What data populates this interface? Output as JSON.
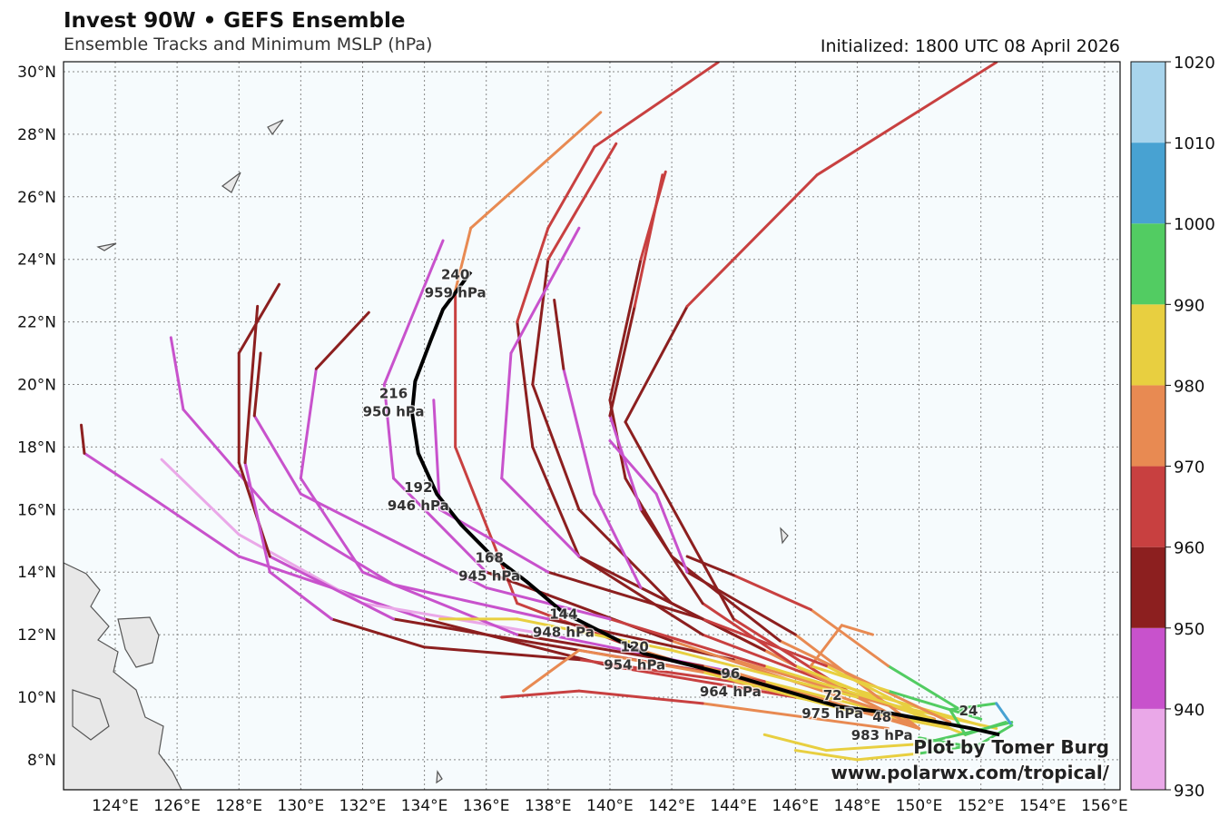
{
  "header": {
    "title": "Invest 90W • GEFS Ensemble",
    "subtitle": "Ensemble Tracks and Minimum MSLP (hPa)",
    "initialized": "Initialized: 1800 UTC 08 April 2026"
  },
  "credit": {
    "line1": "Plot by Tomer Burg",
    "line2": "www.polarwx.com/tropical/"
  },
  "chart_data": {
    "type": "map-tracks",
    "lon_range": [
      122.3,
      156.5
    ],
    "lat_range": [
      7.0,
      30.3
    ],
    "lat_ticks": [
      "8°N",
      "10°N",
      "12°N",
      "14°N",
      "16°N",
      "18°N",
      "20°N",
      "22°N",
      "24°N",
      "26°N",
      "28°N",
      "30°N"
    ],
    "lat_values": [
      8,
      10,
      12,
      14,
      16,
      18,
      20,
      22,
      24,
      26,
      28,
      30
    ],
    "lon_ticks": [
      "124°E",
      "126°E",
      "128°E",
      "130°E",
      "132°E",
      "134°E",
      "136°E",
      "138°E",
      "140°E",
      "142°E",
      "144°E",
      "146°E",
      "148°E",
      "150°E",
      "152°E",
      "154°E",
      "156°E"
    ],
    "lon_values": [
      124,
      126,
      128,
      130,
      132,
      134,
      136,
      138,
      140,
      142,
      144,
      146,
      148,
      150,
      152,
      154,
      156
    ],
    "grid": true,
    "colorbar": {
      "levels": [
        "930",
        "940",
        "950",
        "960",
        "970",
        "980",
        "990",
        "1000",
        "1010",
        "1020"
      ],
      "colors": [
        "#eaa8e8",
        "#c852cc",
        "#8c1f1f",
        "#c84040",
        "#e88a52",
        "#e8cf40",
        "#52cc62",
        "#48a2d2",
        "#a8d4ec"
      ]
    },
    "mean_track": {
      "path": [
        [
          152.6,
          8.8
        ],
        [
          151.7,
          9.0
        ],
        [
          149.0,
          9.5
        ],
        [
          147.4,
          9.7
        ],
        [
          144.3,
          10.6
        ],
        [
          141.1,
          11.4
        ],
        [
          138.5,
          12.7
        ],
        [
          137.3,
          13.7
        ],
        [
          136.1,
          14.6
        ],
        [
          135.2,
          15.5
        ],
        [
          134.4,
          16.5
        ],
        [
          133.8,
          17.8
        ],
        [
          133.6,
          19.1
        ],
        [
          133.7,
          20.1
        ],
        [
          134.2,
          21.4
        ],
        [
          134.6,
          22.4
        ],
        [
          135.5,
          23.6
        ]
      ],
      "labels": [
        {
          "hour": "24",
          "pressure": "",
          "lon": 151.6,
          "lat": 9.3
        },
        {
          "hour": "48",
          "pressure": "983 hPa",
          "lon": 148.8,
          "lat": 9.1
        },
        {
          "hour": "72",
          "pressure": "975 hPa",
          "lon": 147.2,
          "lat": 9.8
        },
        {
          "hour": "96",
          "pressure": "964 hPa",
          "lon": 143.9,
          "lat": 10.5
        },
        {
          "hour": "120",
          "pressure": "954 hPa",
          "lon": 140.8,
          "lat": 11.35
        },
        {
          "hour": "144",
          "pressure": "948 hPa",
          "lon": 138.5,
          "lat": 12.4
        },
        {
          "hour": "168",
          "pressure": "945 hPa",
          "lon": 136.1,
          "lat": 14.2
        },
        {
          "hour": "192",
          "pressure": "946 hPa",
          "lon": 133.8,
          "lat": 16.45
        },
        {
          "hour": "216",
          "pressure": "950 hPa",
          "lon": 133.0,
          "lat": 19.45
        },
        {
          "hour": "240",
          "pressure": "959 hPa",
          "lon": 135.0,
          "lat": 23.25
        }
      ]
    },
    "members": [
      [
        [
          152.5,
          9.0,
          1000
        ],
        [
          148,
          10,
          975
        ],
        [
          144,
          12.5,
          958
        ],
        [
          140.5,
          18.8,
          955
        ],
        [
          142.5,
          22.5,
          962
        ],
        [
          146.7,
          26.7,
          965
        ],
        [
          152.5,
          30.3,
          965
        ]
      ],
      [
        [
          152,
          9.1,
          1000
        ],
        [
          147,
          10.5,
          975
        ],
        [
          143,
          12,
          958
        ],
        [
          139,
          14.5,
          955
        ],
        [
          137.5,
          18,
          957
        ],
        [
          137,
          22,
          960
        ],
        [
          138,
          25,
          963
        ],
        [
          139.5,
          27.6,
          965
        ],
        [
          143.5,
          30.3,
          965
        ]
      ],
      [
        [
          151,
          9.0,
          990
        ],
        [
          146,
          10,
          975
        ],
        [
          141,
          11.5,
          965
        ],
        [
          137,
          13,
          960
        ],
        [
          135,
          18,
          962
        ],
        [
          135,
          23,
          968
        ],
        [
          135.5,
          25,
          972
        ],
        [
          139.7,
          28.7,
          975
        ]
      ],
      [
        [
          151.5,
          8.8,
          995
        ],
        [
          146,
          11,
          968
        ],
        [
          142,
          13,
          955
        ],
        [
          139,
          16,
          950
        ],
        [
          137.5,
          20,
          955
        ],
        [
          138,
          24,
          962
        ],
        [
          140.2,
          27.7,
          965
        ]
      ],
      [
        [
          151,
          9.2,
          995
        ],
        [
          145.5,
          11.8,
          962
        ],
        [
          142,
          14.5,
          952
        ],
        [
          140.5,
          17,
          948
        ],
        [
          140,
          19.5,
          955
        ],
        [
          141,
          24,
          962
        ],
        [
          141.8,
          26.8,
          965
        ]
      ],
      [
        [
          151,
          9,
          1000
        ],
        [
          146,
          10,
          975
        ],
        [
          140,
          11,
          955
        ],
        [
          134,
          12.5,
          945
        ],
        [
          128,
          14.5,
          942
        ],
        [
          125,
          16.5,
          945
        ],
        [
          123,
          17.8,
          952
        ],
        [
          122.9,
          18.7,
          962
        ]
      ],
      [
        [
          150,
          9,
          995
        ],
        [
          144,
          10.8,
          962
        ],
        [
          138,
          12,
          936
        ],
        [
          132,
          13,
          934
        ],
        [
          128,
          15.2,
          936
        ],
        [
          125.5,
          17.6,
          938
        ]
      ],
      [
        [
          150.5,
          9.3,
          995
        ],
        [
          144,
          11.2,
          962
        ],
        [
          138,
          12.5,
          948
        ],
        [
          133,
          13.6,
          944
        ],
        [
          129,
          16,
          942
        ],
        [
          126.2,
          19.2,
          942
        ],
        [
          125.8,
          21.5,
          942
        ]
      ],
      [
        [
          151,
          9,
          1000
        ],
        [
          145,
          10.5,
          970
        ],
        [
          139,
          11.5,
          955
        ],
        [
          133,
          12.5,
          948
        ],
        [
          129,
          14.5,
          945
        ],
        [
          128,
          17.5,
          955
        ],
        [
          128,
          21,
          955
        ],
        [
          129.3,
          23.2,
          958
        ]
      ],
      [
        [
          150,
          9,
          995
        ],
        [
          143,
          11,
          962
        ],
        [
          137,
          12,
          950
        ],
        [
          132,
          14,
          946
        ],
        [
          130,
          17,
          945
        ],
        [
          130.5,
          20.5,
          952
        ],
        [
          132.2,
          22.3,
          958
        ]
      ],
      [
        [
          149,
          9.5,
          990
        ],
        [
          142,
          11.8,
          955
        ],
        [
          136,
          14,
          946
        ],
        [
          133,
          17,
          944
        ],
        [
          132.7,
          20,
          944
        ],
        [
          134.6,
          24.6,
          955
        ]
      ],
      [
        [
          150,
          9,
          995
        ],
        [
          144,
          12,
          958
        ],
        [
          139,
          14.5,
          948
        ],
        [
          136.5,
          17,
          945
        ],
        [
          136.8,
          21,
          945
        ],
        [
          139,
          25,
          945
        ]
      ],
      [
        [
          150,
          9,
          995
        ],
        [
          145,
          11.5,
          960
        ],
        [
          141,
          13.5,
          950
        ],
        [
          139.5,
          16.5,
          945
        ],
        [
          138.5,
          20.5,
          948
        ],
        [
          138.2,
          22.7,
          958
        ]
      ],
      [
        [
          151,
          9,
          998
        ],
        [
          146,
          11,
          970
        ],
        [
          143,
          13,
          955
        ],
        [
          141,
          16,
          950
        ],
        [
          140,
          19,
          945
        ],
        [
          140.8,
          22.5,
          958
        ],
        [
          141.7,
          26.7,
          965
        ]
      ],
      [
        [
          150,
          9,
          995
        ],
        [
          146,
          12,
          962
        ],
        [
          142.5,
          14,
          950
        ],
        [
          141.5,
          16.5,
          942
        ],
        [
          140,
          18.2,
          942
        ]
      ],
      [
        [
          150,
          9.5,
          992
        ],
        [
          145,
          11,
          968
        ],
        [
          140,
          12.5,
          952
        ],
        [
          136,
          13.5,
          944
        ],
        [
          133,
          15,
          944
        ],
        [
          130,
          16.5,
          944
        ],
        [
          128.5,
          19,
          948
        ],
        [
          128.7,
          21,
          955
        ]
      ],
      [
        [
          149.5,
          9.2,
          990
        ],
        [
          144,
          10.5,
          965
        ],
        [
          139,
          11.2,
          958
        ],
        [
          134,
          11.6,
          955
        ],
        [
          131,
          12.5,
          950
        ],
        [
          129,
          14,
          948
        ],
        [
          128.2,
          17.5,
          950
        ],
        [
          128.6,
          22.5,
          956
        ]
      ],
      [
        [
          149,
          9.0,
          988
        ],
        [
          143,
          9.8,
          970
        ],
        [
          139,
          10.2,
          962
        ],
        [
          136.5,
          10.0,
          962
        ]
      ],
      [
        [
          148,
          9.5,
          985
        ],
        [
          143,
          10.8,
          975
        ],
        [
          139,
          11.5,
          970
        ],
        [
          137.2,
          10.2,
          970
        ]
      ],
      [
        [
          148,
          10,
          985
        ],
        [
          142,
          11.5,
          982
        ],
        [
          137,
          12.5,
          982
        ],
        [
          134.5,
          12.5,
          982
        ]
      ],
      [
        [
          153,
          9.2,
          1000
        ],
        [
          150,
          8.5,
          990
        ],
        [
          147,
          8.3,
          985
        ],
        [
          145,
          8.8,
          982
        ]
      ],
      [
        [
          152,
          9.3,
          995
        ],
        [
          149,
          10.2,
          985
        ],
        [
          146.5,
          11,
          975
        ],
        [
          147.5,
          12.3,
          970
        ],
        [
          148.5,
          12,
          970
        ]
      ],
      [
        [
          152,
          8.5,
          995
        ],
        [
          150,
          8.2,
          990
        ],
        [
          148,
          8.0,
          985
        ],
        [
          146,
          8.3,
          982
        ]
      ],
      [
        [
          151.5,
          9.5,
          995
        ],
        [
          149,
          11,
          985
        ],
        [
          146.5,
          12.8,
          968
        ],
        [
          144,
          13.9,
          958
        ],
        [
          142.5,
          14.5,
          955
        ]
      ],
      [
        [
          151,
          9,
          998
        ],
        [
          147,
          11,
          975
        ],
        [
          143,
          12.5,
          958
        ],
        [
          138,
          14,
          950
        ],
        [
          134.5,
          16,
          946
        ],
        [
          134.3,
          19.5,
          944
        ]
      ],
      [
        [
          152.8,
          9.2,
          1000
        ],
        [
          151.5,
          8.8,
          995
        ],
        [
          151,
          9.6,
          995
        ],
        [
          152.5,
          9.8,
          1000
        ],
        [
          153,
          9.1,
          1000
        ],
        [
          151.8,
          8.4,
          995
        ],
        [
          150,
          8.7,
          995
        ]
      ]
    ]
  }
}
